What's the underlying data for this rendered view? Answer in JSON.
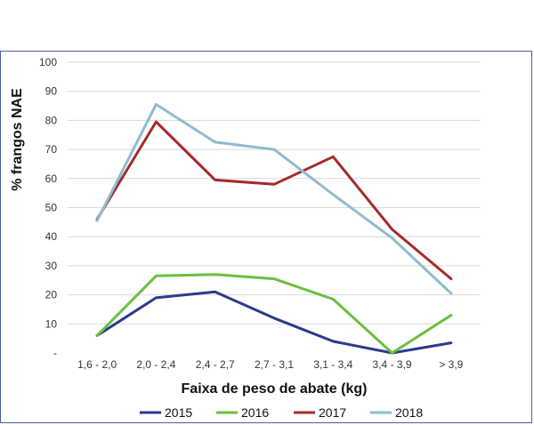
{
  "chart_data": {
    "type": "line",
    "title": "",
    "xlabel": "Faixa de peso de abate (kg)",
    "ylabel": "% frangos NAE",
    "categories": [
      "1,6 - 2,0",
      "2,0 - 2,4",
      "2,4 - 2,7",
      "2,7 - 3,1",
      "3,1 - 3,4",
      "3,4 - 3,9",
      "> 3,9"
    ],
    "ylim": [
      0,
      100
    ],
    "yticks": [
      0,
      10,
      20,
      30,
      40,
      50,
      60,
      70,
      80,
      90,
      100
    ],
    "ytick_labels": [
      "-",
      "10",
      "20",
      "30",
      "40",
      "50",
      "60",
      "70",
      "80",
      "90",
      "100"
    ],
    "grid": true,
    "legend_position": "bottom",
    "series": [
      {
        "name": "2015",
        "color": "#2b3a8c",
        "values": [
          6,
          19,
          21,
          12,
          4,
          0,
          3.5
        ]
      },
      {
        "name": "2016",
        "color": "#6abf3f",
        "values": [
          6,
          26.5,
          27,
          25.5,
          18.5,
          0,
          13
        ]
      },
      {
        "name": "2017",
        "color": "#a52a2a",
        "values": [
          46,
          79.5,
          59.5,
          58,
          67.5,
          42.5,
          25.5
        ]
      },
      {
        "name": "2018",
        "color": "#8fbcd0",
        "values": [
          45.5,
          85.5,
          72.5,
          70,
          54.5,
          39.5,
          20.5
        ]
      }
    ]
  }
}
